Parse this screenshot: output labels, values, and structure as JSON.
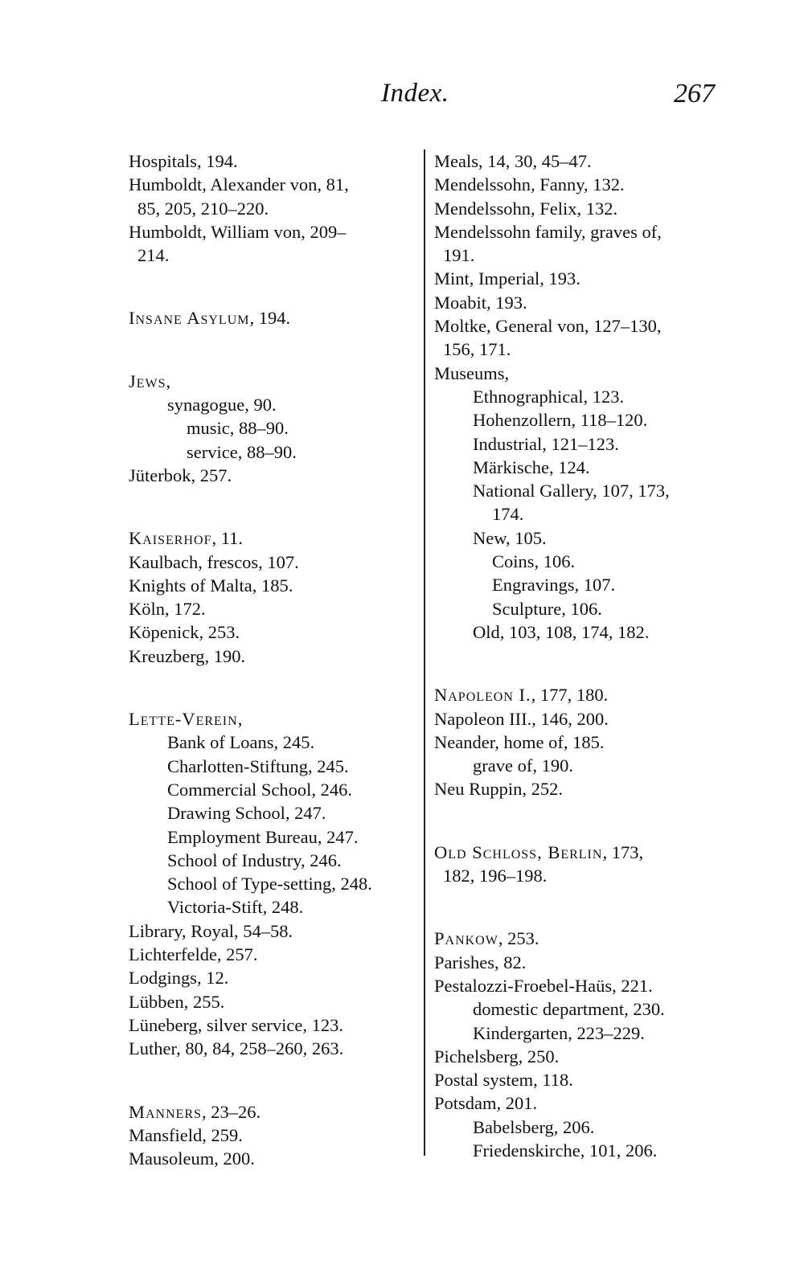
{
  "header": {
    "title": "Index.",
    "page_number": "267"
  },
  "left_column": [
    [
      {
        "text": "Hospitals, 194.",
        "indent": 0
      },
      {
        "text": "Humboldt, Alexander von, 81,",
        "indent": 0
      },
      {
        "text": "85, 205, 210–220.",
        "indent": 1
      },
      {
        "text": "Humboldt, William von, 209–",
        "indent": 0
      },
      {
        "text": "214.",
        "indent": 1
      }
    ],
    [
      {
        "head": "Insane Asylum",
        "text": ", 194.",
        "indent": 0
      }
    ],
    [
      {
        "head": "Jews",
        "text": ",",
        "indent": 0
      },
      {
        "text": "synagogue, 90.",
        "indent": 2
      },
      {
        "text": "music, 88–90.",
        "indent": 3
      },
      {
        "text": "service, 88–90.",
        "indent": 3
      },
      {
        "text": "Jüterbok, 257.",
        "indent": 0
      }
    ],
    [
      {
        "head": "Kaiserhof",
        "text": ", 11.",
        "indent": 0
      },
      {
        "text": "Kaulbach, frescos, 107.",
        "indent": 0
      },
      {
        "text": "Knights of Malta, 185.",
        "indent": 0
      },
      {
        "text": "Köln, 172.",
        "indent": 0
      },
      {
        "text": "Köpenick, 253.",
        "indent": 0
      },
      {
        "text": "Kreuzberg, 190.",
        "indent": 0
      }
    ],
    [
      {
        "head": "Lette-Verein",
        "text": ",",
        "indent": 0
      },
      {
        "text": "Bank of Loans, 245.",
        "indent": 2
      },
      {
        "text": "Charlotten-Stiftung, 245.",
        "indent": 2
      },
      {
        "text": "Commercial School, 246.",
        "indent": 2
      },
      {
        "text": "Drawing School, 247.",
        "indent": 2
      },
      {
        "text": "Employment Bureau, 247.",
        "indent": 2
      },
      {
        "text": "School of Industry, 246.",
        "indent": 2
      },
      {
        "text": "School of Type-setting, 248.",
        "indent": 2
      },
      {
        "text": "Victoria-Stift, 248.",
        "indent": 2
      },
      {
        "text": "Library, Royal, 54–58.",
        "indent": 0
      },
      {
        "text": "Lichterfelde, 257.",
        "indent": 0
      },
      {
        "text": "Lodgings, 12.",
        "indent": 0
      },
      {
        "text": "Lübben, 255.",
        "indent": 0
      },
      {
        "text": "Lüneberg, silver service, 123.",
        "indent": 0
      },
      {
        "text": "Luther, 80, 84, 258–260, 263.",
        "indent": 0
      }
    ],
    [
      {
        "head": "Manners",
        "text": ", 23–26.",
        "indent": 0
      },
      {
        "text": "Mansfield, 259.",
        "indent": 0
      },
      {
        "text": "Mausoleum, 200.",
        "indent": 0
      }
    ]
  ],
  "right_column": [
    [
      {
        "text": "Meals, 14, 30, 45–47.",
        "indent": 0
      },
      {
        "text": "Mendelssohn, Fanny, 132.",
        "indent": 0
      },
      {
        "text": "Mendelssohn, Felix, 132.",
        "indent": 0
      },
      {
        "text": "Mendelssohn family, graves of,",
        "indent": 0
      },
      {
        "text": "191.",
        "indent": 1
      },
      {
        "text": "Mint, Imperial, 193.",
        "indent": 0
      },
      {
        "text": "Moabit, 193.",
        "indent": 0
      },
      {
        "text": "Moltke, General von, 127–130,",
        "indent": 0
      },
      {
        "text": "156, 171.",
        "indent": 1
      },
      {
        "text": "Museums,",
        "indent": 0
      },
      {
        "text": "Ethnographical, 123.",
        "indent": 2
      },
      {
        "text": "Hohenzollern, 118–120.",
        "indent": 2
      },
      {
        "text": "Industrial, 121–123.",
        "indent": 2
      },
      {
        "text": "Märkische, 124.",
        "indent": 2
      },
      {
        "text": "National Gallery, 107, 173,",
        "indent": 2
      },
      {
        "text": "174.",
        "indent": 3
      },
      {
        "text": "New, 105.",
        "indent": 2
      },
      {
        "text": "Coins, 106.",
        "indent": 3
      },
      {
        "text": "Engravings, 107.",
        "indent": 3
      },
      {
        "text": "Sculpture, 106.",
        "indent": 3
      },
      {
        "text": "Old, 103, 108, 174, 182.",
        "indent": 2
      }
    ],
    [
      {
        "head": "Napoleon I.",
        "text": ", 177, 180.",
        "indent": 0
      },
      {
        "text": "Napoleon III., 146, 200.",
        "indent": 0
      },
      {
        "text": "Neander, home of, 185.",
        "indent": 0
      },
      {
        "text": "grave of, 190.",
        "indent": 2
      },
      {
        "text": "Neu Ruppin, 252.",
        "indent": 0
      }
    ],
    [
      {
        "head": "Old Schloss, Berlin",
        "text": ", 173,",
        "indent": 0
      },
      {
        "text": "182, 196–198.",
        "indent": 1
      }
    ],
    [
      {
        "head": "Pankow",
        "text": ", 253.",
        "indent": 0
      },
      {
        "text": "Parishes, 82.",
        "indent": 0
      },
      {
        "text": "Pestalozzi-Froebel-Haüs, 221.",
        "indent": 0
      },
      {
        "text": "domestic department, 230.",
        "indent": 2
      },
      {
        "text": "Kindergarten, 223–229.",
        "indent": 2
      },
      {
        "text": "Pichelsberg, 250.",
        "indent": 0
      },
      {
        "text": "Postal system, 118.",
        "indent": 0
      },
      {
        "text": "Potsdam, 201.",
        "indent": 0
      },
      {
        "text": "Babelsberg, 206.",
        "indent": 2
      },
      {
        "text": "Friedenskirche, 101, 206.",
        "indent": 2
      }
    ]
  ]
}
